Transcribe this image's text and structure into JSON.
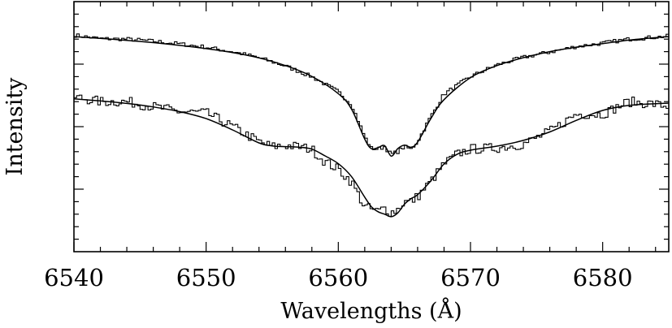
{
  "chart_data": {
    "type": "line",
    "title": "",
    "xlabel": "Wavelengths (Å)",
    "ylabel": "Intensity",
    "xlim": [
      6540,
      6585
    ],
    "ylim": [
      0,
      1
    ],
    "x_ticks": [
      6540,
      6550,
      6560,
      6570,
      6580
    ],
    "x_tick_labels": [
      "6540",
      "6550",
      "6560",
      "6570",
      "6580"
    ],
    "grid": false,
    "legend": "none",
    "series": [
      {
        "kind": "observed",
        "style": "histogram",
        "x": [
          6540,
          6542,
          6544,
          6546,
          6548,
          6550,
          6552,
          6554,
          6556,
          6558,
          6560,
          6561,
          6562,
          6562.5,
          6563,
          6563.5,
          6564,
          6564.5,
          6565,
          6565.5,
          6566,
          6567,
          6568,
          6570,
          6572,
          6574,
          6576,
          6578,
          6580,
          6582,
          6584,
          6585
        ],
        "y": [
          0.866,
          0.852,
          0.85,
          0.842,
          0.831,
          0.818,
          0.8,
          0.776,
          0.743,
          0.7,
          0.64,
          0.59,
          0.46,
          0.414,
          0.41,
          0.42,
          0.389,
          0.4,
          0.42,
          0.41,
          0.44,
          0.54,
          0.63,
          0.7,
          0.747,
          0.777,
          0.798,
          0.82,
          0.834,
          0.85,
          0.858,
          0.862
        ]
      },
      {
        "kind": "model",
        "style": "smooth",
        "x": [
          6540,
          6542,
          6544,
          6546,
          6548,
          6550,
          6552,
          6554,
          6556,
          6558,
          6560,
          6561,
          6562,
          6562.5,
          6563,
          6563.5,
          6564,
          6564.5,
          6565,
          6565.5,
          6566,
          6567,
          6568,
          6570,
          6572,
          6574,
          6576,
          6578,
          6580,
          6582,
          6584,
          6585
        ],
        "y": [
          0.86,
          0.853,
          0.845,
          0.836,
          0.825,
          0.812,
          0.796,
          0.775,
          0.744,
          0.701,
          0.632,
          0.57,
          0.45,
          0.412,
          0.416,
          0.424,
          0.382,
          0.412,
          0.426,
          0.418,
          0.438,
          0.532,
          0.608,
          0.696,
          0.744,
          0.776,
          0.8,
          0.818,
          0.832,
          0.846,
          0.856,
          0.86
        ]
      },
      {
        "kind": "observed",
        "style": "histogram",
        "x": [
          6540,
          6542,
          6544,
          6546,
          6548,
          6550,
          6552,
          6554,
          6555,
          6556,
          6557,
          6558,
          6559,
          6560,
          6561,
          6562,
          6562.5,
          6563,
          6563.5,
          6564,
          6564.5,
          6565,
          6565.5,
          6566,
          6567,
          6568,
          6569,
          6570,
          6572,
          6574,
          6576,
          6578,
          6580,
          6582,
          6584,
          6585
        ],
        "y": [
          0.62,
          0.6,
          0.6,
          0.58,
          0.56,
          0.555,
          0.5,
          0.44,
          0.42,
          0.425,
          0.42,
          0.41,
          0.36,
          0.33,
          0.28,
          0.18,
          0.17,
          0.16,
          0.175,
          0.156,
          0.17,
          0.2,
          0.2,
          0.22,
          0.28,
          0.35,
          0.39,
          0.41,
          0.415,
          0.43,
          0.48,
          0.55,
          0.55,
          0.6,
          0.59,
          0.58
        ]
      },
      {
        "kind": "model",
        "style": "smooth",
        "x": [
          6540,
          6542,
          6544,
          6546,
          6548,
          6550,
          6552,
          6554,
          6555,
          6556,
          6557,
          6558,
          6559,
          6560,
          6561,
          6562,
          6562.5,
          6563,
          6563.5,
          6564,
          6564.5,
          6565,
          6565.5,
          6566,
          6567,
          6568,
          6569,
          6570,
          6572,
          6574,
          6576,
          6578,
          6580,
          6582,
          6584,
          6585
        ],
        "y": [
          0.611,
          0.603,
          0.593,
          0.579,
          0.56,
          0.532,
          0.487,
          0.435,
          0.423,
          0.42,
          0.418,
          0.41,
          0.383,
          0.352,
          0.3,
          0.218,
          0.18,
          0.16,
          0.15,
          0.14,
          0.155,
          0.19,
          0.212,
          0.228,
          0.283,
          0.351,
          0.39,
          0.406,
          0.422,
          0.445,
          0.479,
          0.525,
          0.565,
          0.585,
          0.592,
          0.594
        ]
      }
    ]
  }
}
